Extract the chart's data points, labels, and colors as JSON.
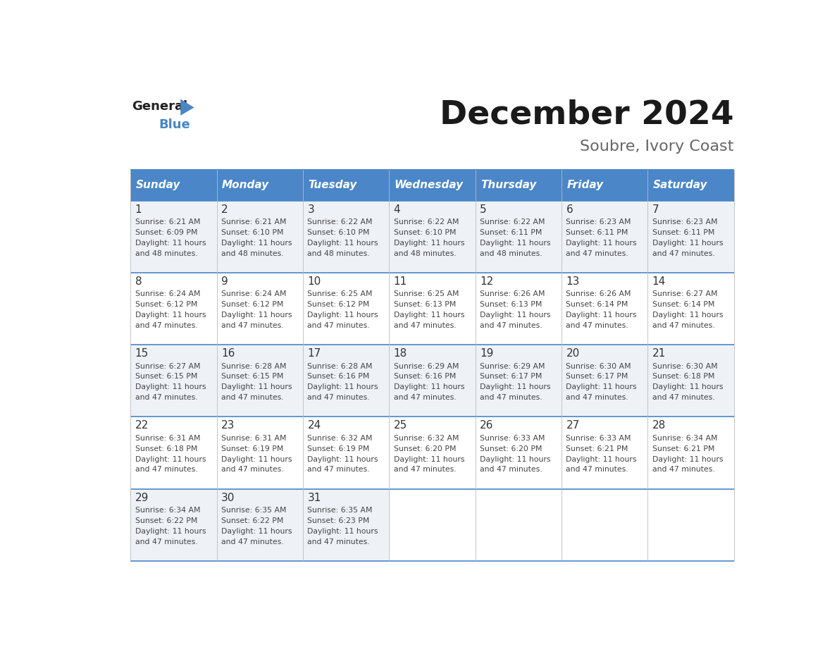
{
  "title": "December 2024",
  "subtitle": "Soubre, Ivory Coast",
  "days_of_week": [
    "Sunday",
    "Monday",
    "Tuesday",
    "Wednesday",
    "Thursday",
    "Friday",
    "Saturday"
  ],
  "header_bg": "#4a86c8",
  "header_text_color": "#ffffff",
  "row_bg_odd": "#eef2f7",
  "row_bg_even": "#ffffff",
  "border_color": "#4a86c8",
  "day_number_color": "#333333",
  "cell_text_color": "#444444",
  "title_color": "#1a1a1a",
  "subtitle_color": "#666666",
  "calendar_data": [
    {
      "day": 1,
      "col": 0,
      "row": 0,
      "sunrise": "6:21 AM",
      "sunset": "6:09 PM",
      "daylight_hours": 11,
      "daylight_minutes": 48
    },
    {
      "day": 2,
      "col": 1,
      "row": 0,
      "sunrise": "6:21 AM",
      "sunset": "6:10 PM",
      "daylight_hours": 11,
      "daylight_minutes": 48
    },
    {
      "day": 3,
      "col": 2,
      "row": 0,
      "sunrise": "6:22 AM",
      "sunset": "6:10 PM",
      "daylight_hours": 11,
      "daylight_minutes": 48
    },
    {
      "day": 4,
      "col": 3,
      "row": 0,
      "sunrise": "6:22 AM",
      "sunset": "6:10 PM",
      "daylight_hours": 11,
      "daylight_minutes": 48
    },
    {
      "day": 5,
      "col": 4,
      "row": 0,
      "sunrise": "6:22 AM",
      "sunset": "6:11 PM",
      "daylight_hours": 11,
      "daylight_minutes": 48
    },
    {
      "day": 6,
      "col": 5,
      "row": 0,
      "sunrise": "6:23 AM",
      "sunset": "6:11 PM",
      "daylight_hours": 11,
      "daylight_minutes": 47
    },
    {
      "day": 7,
      "col": 6,
      "row": 0,
      "sunrise": "6:23 AM",
      "sunset": "6:11 PM",
      "daylight_hours": 11,
      "daylight_minutes": 47
    },
    {
      "day": 8,
      "col": 0,
      "row": 1,
      "sunrise": "6:24 AM",
      "sunset": "6:12 PM",
      "daylight_hours": 11,
      "daylight_minutes": 47
    },
    {
      "day": 9,
      "col": 1,
      "row": 1,
      "sunrise": "6:24 AM",
      "sunset": "6:12 PM",
      "daylight_hours": 11,
      "daylight_minutes": 47
    },
    {
      "day": 10,
      "col": 2,
      "row": 1,
      "sunrise": "6:25 AM",
      "sunset": "6:12 PM",
      "daylight_hours": 11,
      "daylight_minutes": 47
    },
    {
      "day": 11,
      "col": 3,
      "row": 1,
      "sunrise": "6:25 AM",
      "sunset": "6:13 PM",
      "daylight_hours": 11,
      "daylight_minutes": 47
    },
    {
      "day": 12,
      "col": 4,
      "row": 1,
      "sunrise": "6:26 AM",
      "sunset": "6:13 PM",
      "daylight_hours": 11,
      "daylight_minutes": 47
    },
    {
      "day": 13,
      "col": 5,
      "row": 1,
      "sunrise": "6:26 AM",
      "sunset": "6:14 PM",
      "daylight_hours": 11,
      "daylight_minutes": 47
    },
    {
      "day": 14,
      "col": 6,
      "row": 1,
      "sunrise": "6:27 AM",
      "sunset": "6:14 PM",
      "daylight_hours": 11,
      "daylight_minutes": 47
    },
    {
      "day": 15,
      "col": 0,
      "row": 2,
      "sunrise": "6:27 AM",
      "sunset": "6:15 PM",
      "daylight_hours": 11,
      "daylight_minutes": 47
    },
    {
      "day": 16,
      "col": 1,
      "row": 2,
      "sunrise": "6:28 AM",
      "sunset": "6:15 PM",
      "daylight_hours": 11,
      "daylight_minutes": 47
    },
    {
      "day": 17,
      "col": 2,
      "row": 2,
      "sunrise": "6:28 AM",
      "sunset": "6:16 PM",
      "daylight_hours": 11,
      "daylight_minutes": 47
    },
    {
      "day": 18,
      "col": 3,
      "row": 2,
      "sunrise": "6:29 AM",
      "sunset": "6:16 PM",
      "daylight_hours": 11,
      "daylight_minutes": 47
    },
    {
      "day": 19,
      "col": 4,
      "row": 2,
      "sunrise": "6:29 AM",
      "sunset": "6:17 PM",
      "daylight_hours": 11,
      "daylight_minutes": 47
    },
    {
      "day": 20,
      "col": 5,
      "row": 2,
      "sunrise": "6:30 AM",
      "sunset": "6:17 PM",
      "daylight_hours": 11,
      "daylight_minutes": 47
    },
    {
      "day": 21,
      "col": 6,
      "row": 2,
      "sunrise": "6:30 AM",
      "sunset": "6:18 PM",
      "daylight_hours": 11,
      "daylight_minutes": 47
    },
    {
      "day": 22,
      "col": 0,
      "row": 3,
      "sunrise": "6:31 AM",
      "sunset": "6:18 PM",
      "daylight_hours": 11,
      "daylight_minutes": 47
    },
    {
      "day": 23,
      "col": 1,
      "row": 3,
      "sunrise": "6:31 AM",
      "sunset": "6:19 PM",
      "daylight_hours": 11,
      "daylight_minutes": 47
    },
    {
      "day": 24,
      "col": 2,
      "row": 3,
      "sunrise": "6:32 AM",
      "sunset": "6:19 PM",
      "daylight_hours": 11,
      "daylight_minutes": 47
    },
    {
      "day": 25,
      "col": 3,
      "row": 3,
      "sunrise": "6:32 AM",
      "sunset": "6:20 PM",
      "daylight_hours": 11,
      "daylight_minutes": 47
    },
    {
      "day": 26,
      "col": 4,
      "row": 3,
      "sunrise": "6:33 AM",
      "sunset": "6:20 PM",
      "daylight_hours": 11,
      "daylight_minutes": 47
    },
    {
      "day": 27,
      "col": 5,
      "row": 3,
      "sunrise": "6:33 AM",
      "sunset": "6:21 PM",
      "daylight_hours": 11,
      "daylight_minutes": 47
    },
    {
      "day": 28,
      "col": 6,
      "row": 3,
      "sunrise": "6:34 AM",
      "sunset": "6:21 PM",
      "daylight_hours": 11,
      "daylight_minutes": 47
    },
    {
      "day": 29,
      "col": 0,
      "row": 4,
      "sunrise": "6:34 AM",
      "sunset": "6:22 PM",
      "daylight_hours": 11,
      "daylight_minutes": 47
    },
    {
      "day": 30,
      "col": 1,
      "row": 4,
      "sunrise": "6:35 AM",
      "sunset": "6:22 PM",
      "daylight_hours": 11,
      "daylight_minutes": 47
    },
    {
      "day": 31,
      "col": 2,
      "row": 4,
      "sunrise": "6:35 AM",
      "sunset": "6:23 PM",
      "daylight_hours": 11,
      "daylight_minutes": 47
    }
  ],
  "num_rows": 5,
  "num_cols": 7,
  "logo_general_color": "#222222",
  "logo_blue_color": "#4a86c8",
  "logo_triangle_color": "#4a86c8"
}
